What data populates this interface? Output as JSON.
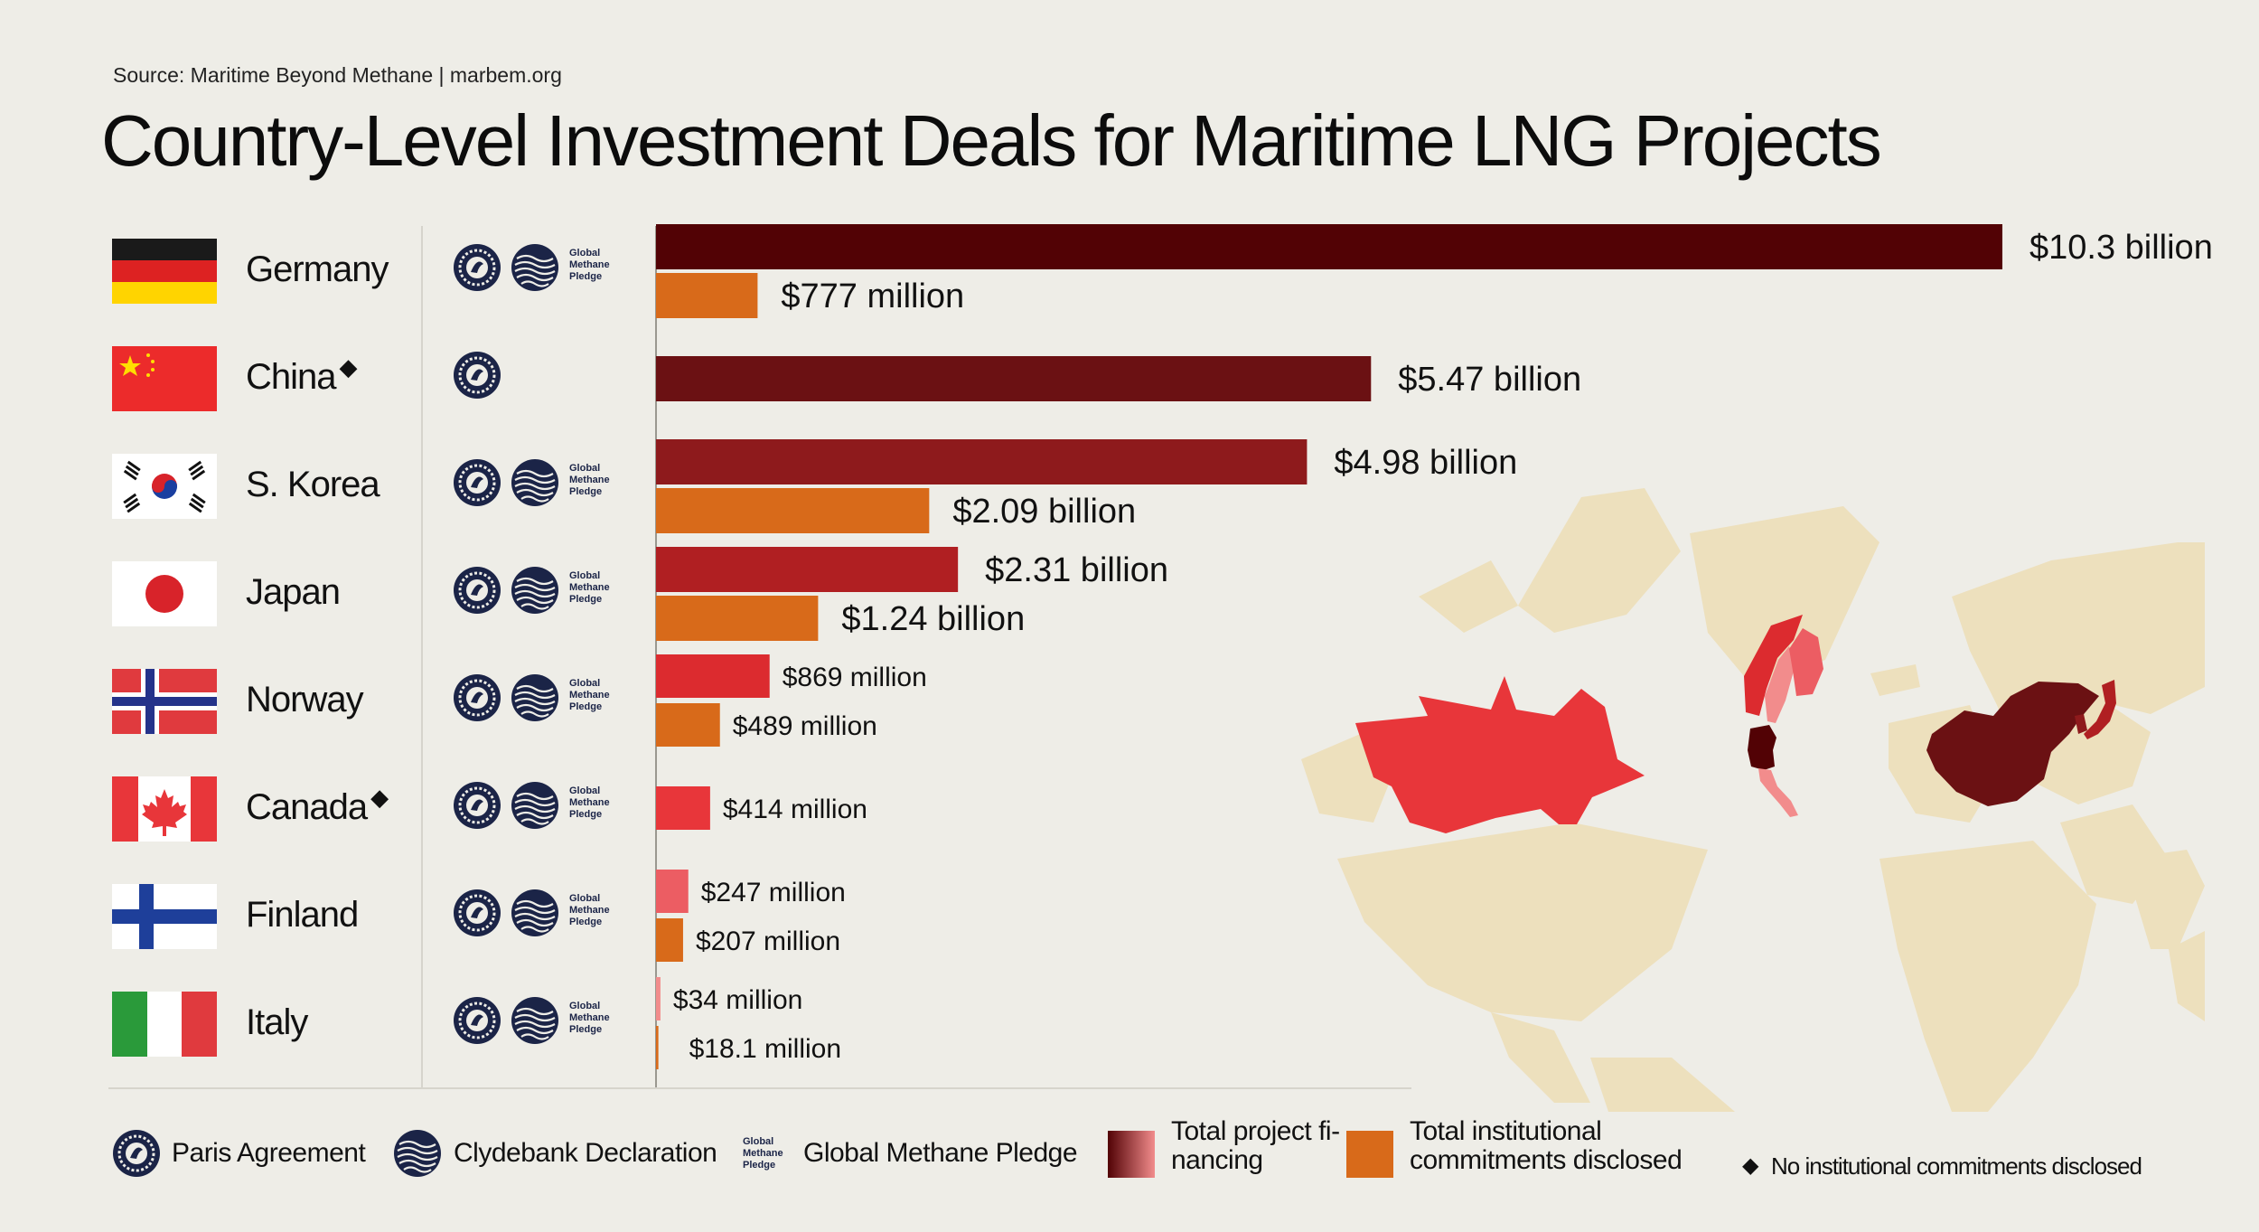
{
  "source": "Source: Maritime Beyond Methane |  marbem.org",
  "title": "Country-Level Investment Deals for Maritime LNG Projects",
  "colors": {
    "background": "#eeede7",
    "institutional": "#d86a1a",
    "map_land": "#ede0bd",
    "bar_germany": "#520205",
    "bar_china": "#6b1113",
    "bar_skorea": "#8e1a1c",
    "bar_japan": "#b01f22",
    "bar_norway": "#dc2b2f",
    "bar_canada": "#e8363a",
    "bar_finland": "#ec5d63",
    "bar_italy": "#f28c8c"
  },
  "countries": [
    {
      "name": "Germany",
      "diamond": "",
      "icons": [
        "paris-agreement",
        "clydebank-declaration",
        "global-methane-pledge"
      ]
    },
    {
      "name": "China",
      "diamond": "◆",
      "icons": [
        "paris-agreement"
      ]
    },
    {
      "name": "S. Korea",
      "diamond": "",
      "icons": [
        "paris-agreement",
        "clydebank-declaration",
        "global-methane-pledge"
      ]
    },
    {
      "name": "Japan",
      "diamond": "",
      "icons": [
        "paris-agreement",
        "clydebank-declaration",
        "global-methane-pledge"
      ]
    },
    {
      "name": "Norway",
      "diamond": "",
      "icons": [
        "paris-agreement",
        "clydebank-declaration",
        "global-methane-pledge"
      ]
    },
    {
      "name": "Canada",
      "diamond": "◆",
      "icons": [
        "paris-agreement",
        "clydebank-declaration",
        "global-methane-pledge"
      ]
    },
    {
      "name": "Finland",
      "diamond": "",
      "icons": [
        "paris-agreement",
        "clydebank-declaration",
        "global-methane-pledge"
      ]
    },
    {
      "name": "Italy",
      "diamond": "",
      "icons": [
        "paris-agreement",
        "clydebank-declaration",
        "global-methane-pledge"
      ]
    }
  ],
  "gmp_label": {
    "line1": "Global",
    "line2": "Methane",
    "line3": "Pledge"
  },
  "chart_data": {
    "type": "bar",
    "orientation": "horizontal",
    "unit": "USD million",
    "categories": [
      "Germany",
      "China",
      "S. Korea",
      "Japan",
      "Norway",
      "Canada",
      "Finland",
      "Italy"
    ],
    "series": [
      {
        "name": "Total project financing",
        "values": [
          10300,
          5470,
          4980,
          2310,
          869,
          414,
          247,
          34
        ],
        "labels": [
          "$10.3 billion",
          "$5.47 billion",
          "$4.98 billion",
          "$2.31 billion",
          "$869 million",
          "$414 million",
          "$247 million",
          "$34 million"
        ]
      },
      {
        "name": "Total institutional commitments disclosed",
        "values": [
          777,
          null,
          2090,
          1240,
          489,
          null,
          207,
          18.1
        ],
        "labels": [
          "$777 million",
          "",
          "$2.09 billion",
          "$1.24 billion",
          "$489 million",
          "",
          "$207 million",
          "$18.1 million"
        ]
      }
    ]
  },
  "legend": {
    "paris": "Paris Agreement",
    "clydebank": "Clydebank Declaration",
    "gmp": "Global Methane Pledge",
    "financing_line1": "Total project fi-",
    "financing_line2": "nancing",
    "institutional_line1": "Total institutional",
    "institutional_line2": "commitments disclosed",
    "no_commitments": "No institutional commitments disclosed",
    "diamond": "◆"
  }
}
